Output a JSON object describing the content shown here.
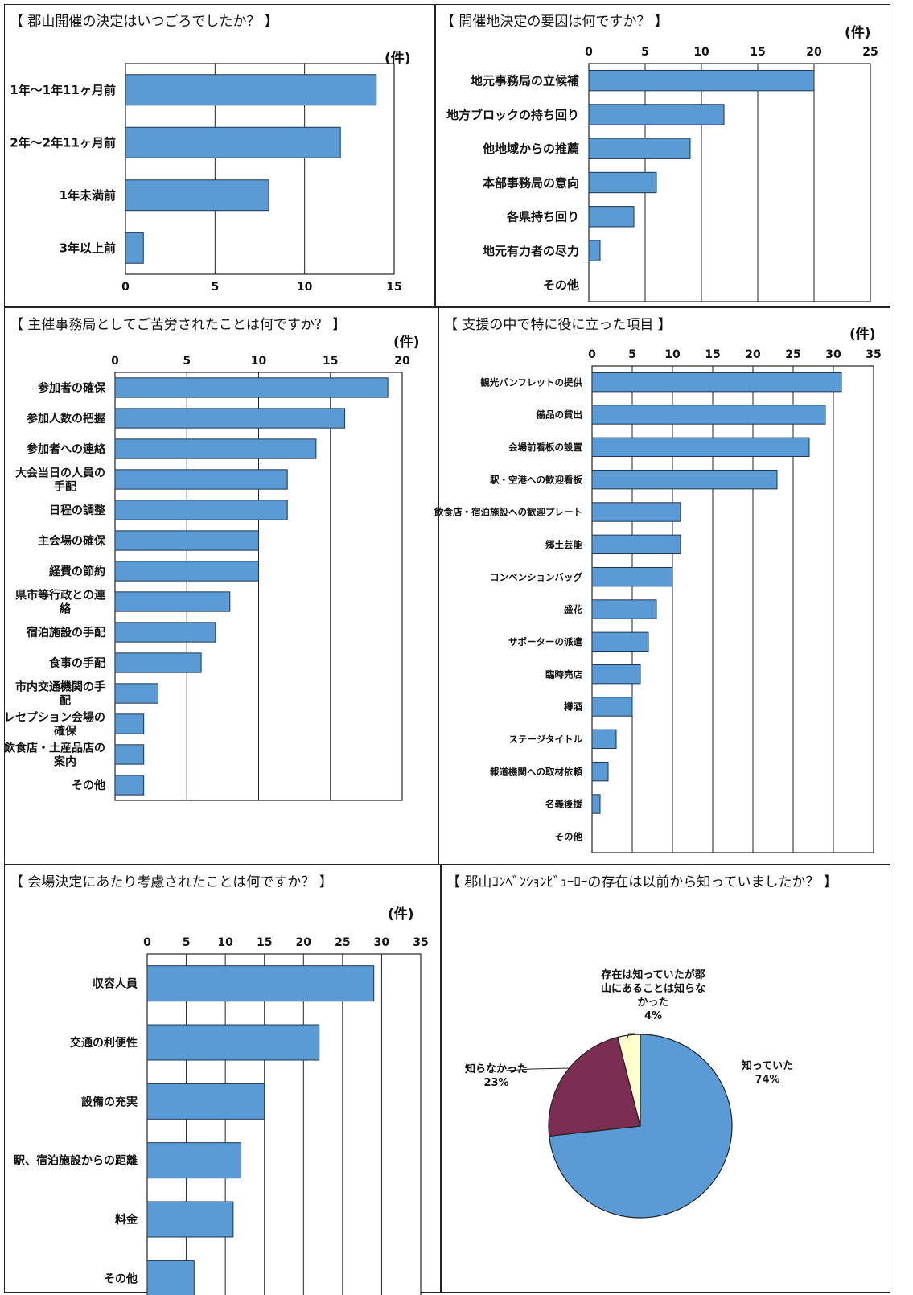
{
  "chart_data": [
    {
      "type": "bar",
      "title": "【 郡山開催の決定はいつごろでしたか？ 】",
      "unit": "(件)",
      "categories": [
        "1年～1年11ヶ月前",
        "2年～2年11ヶ月前",
        "1年未満前",
        "3年以上前"
      ],
      "values": [
        14,
        12,
        8,
        1
      ],
      "xlim": [
        0,
        15
      ],
      "ticks": [
        "0",
        "5",
        "10",
        "15"
      ],
      "tick_position": "bottom",
      "grid": true,
      "bar_color": "#5b9bd5"
    },
    {
      "type": "bar",
      "title": "【 開催地決定の要因は何ですか？ 】",
      "unit": "(件)",
      "categories": [
        "地元事務局の立候補",
        "地方ブロックの持ち回り",
        "他地域からの推薦",
        "本部事務局の意向",
        "各県持ち回り",
        "地元有力者の尽力",
        "その他"
      ],
      "values": [
        20,
        12,
        9,
        6,
        4,
        1,
        0
      ],
      "xlim": [
        0,
        25
      ],
      "ticks": [
        "0",
        "5",
        "10",
        "15",
        "20",
        "25"
      ],
      "tick_position": "top",
      "grid": true,
      "bar_color": "#5b9bd5"
    },
    {
      "type": "bar",
      "title": "【 主催事務局としてご苦労されたことは何ですか？ 】",
      "unit": "(件)",
      "categories": [
        "参加者の確保",
        "参加人数の把握",
        "参加者への連絡",
        "大会当日の人員の|手配",
        "日程の調整",
        "主会場の確保",
        "経費の節約",
        "県市等行政との連|絡",
        "宿泊施設の手配",
        "食事の手配",
        "市内交通機関の手|配",
        "レセプション会場の|確保",
        "飲食店・土産品店の|案内",
        "その他"
      ],
      "values": [
        19,
        16,
        14,
        12,
        12,
        10,
        10,
        8,
        7,
        6,
        3,
        2,
        2,
        2
      ],
      "xlim": [
        0,
        20
      ],
      "ticks": [
        "0",
        "5",
        "10",
        "15",
        "20"
      ],
      "tick_position": "top",
      "grid": true,
      "bar_color": "#5b9bd5"
    },
    {
      "type": "bar",
      "title": "【 支援の中で特に役に立った項目 】",
      "unit": "(件)",
      "categories": [
        "観光パンフレットの提供",
        "備品の貸出",
        "会場前看板の設置",
        "駅・空港への歓迎看板",
        "飲食店・宿泊施設への歓迎プレート",
        "郷土芸能",
        "コンベンションバッグ",
        "盛花",
        "サポーターの派遣",
        "臨時売店",
        "樽酒",
        "ステージタイトル",
        "報道機関への取材依頼",
        "名義後援",
        "その他"
      ],
      "values": [
        31,
        29,
        27,
        23,
        11,
        11,
        10,
        8,
        7,
        6,
        5,
        3,
        2,
        1,
        0
      ],
      "xlim": [
        0,
        35
      ],
      "ticks": [
        "0",
        "5",
        "10",
        "15",
        "20",
        "25",
        "30",
        "35"
      ],
      "tick_position": "top",
      "grid": true,
      "bar_color": "#5b9bd5"
    },
    {
      "type": "bar",
      "title": "【 会場決定にあたり考慮されたことは何ですか？ 】",
      "unit": "(件)",
      "categories": [
        "収容人員",
        "交通の利便性",
        "設備の充実",
        "駅、宿泊施設からの距離",
        "料金",
        "その他"
      ],
      "values": [
        29,
        22,
        15,
        12,
        11,
        6
      ],
      "xlim": [
        0,
        35
      ],
      "ticks": [
        "0",
        "5",
        "10",
        "15",
        "20",
        "25",
        "30",
        "35"
      ],
      "tick_position": "top",
      "grid": true,
      "bar_color": "#5b9bd5"
    },
    {
      "type": "pie",
      "title": "【 郡山ｺﾝﾍﾞﾝｼｮﾝﾋﾞｭｰﾛｰの存在は以前から知っていましたか？ 】",
      "slices": [
        {
          "label": "知っていた",
          "value": 74,
          "value_label": "74%",
          "color": "#5b9bd5"
        },
        {
          "label": "知らなかった",
          "value": 23,
          "value_label": "23%",
          "color": "#7b2d52"
        },
        {
          "label": "存在は知っていたが郡|山にあることは知らな|かった",
          "value": 4,
          "value_label": "4%",
          "color": "#ffffcc"
        }
      ]
    }
  ]
}
